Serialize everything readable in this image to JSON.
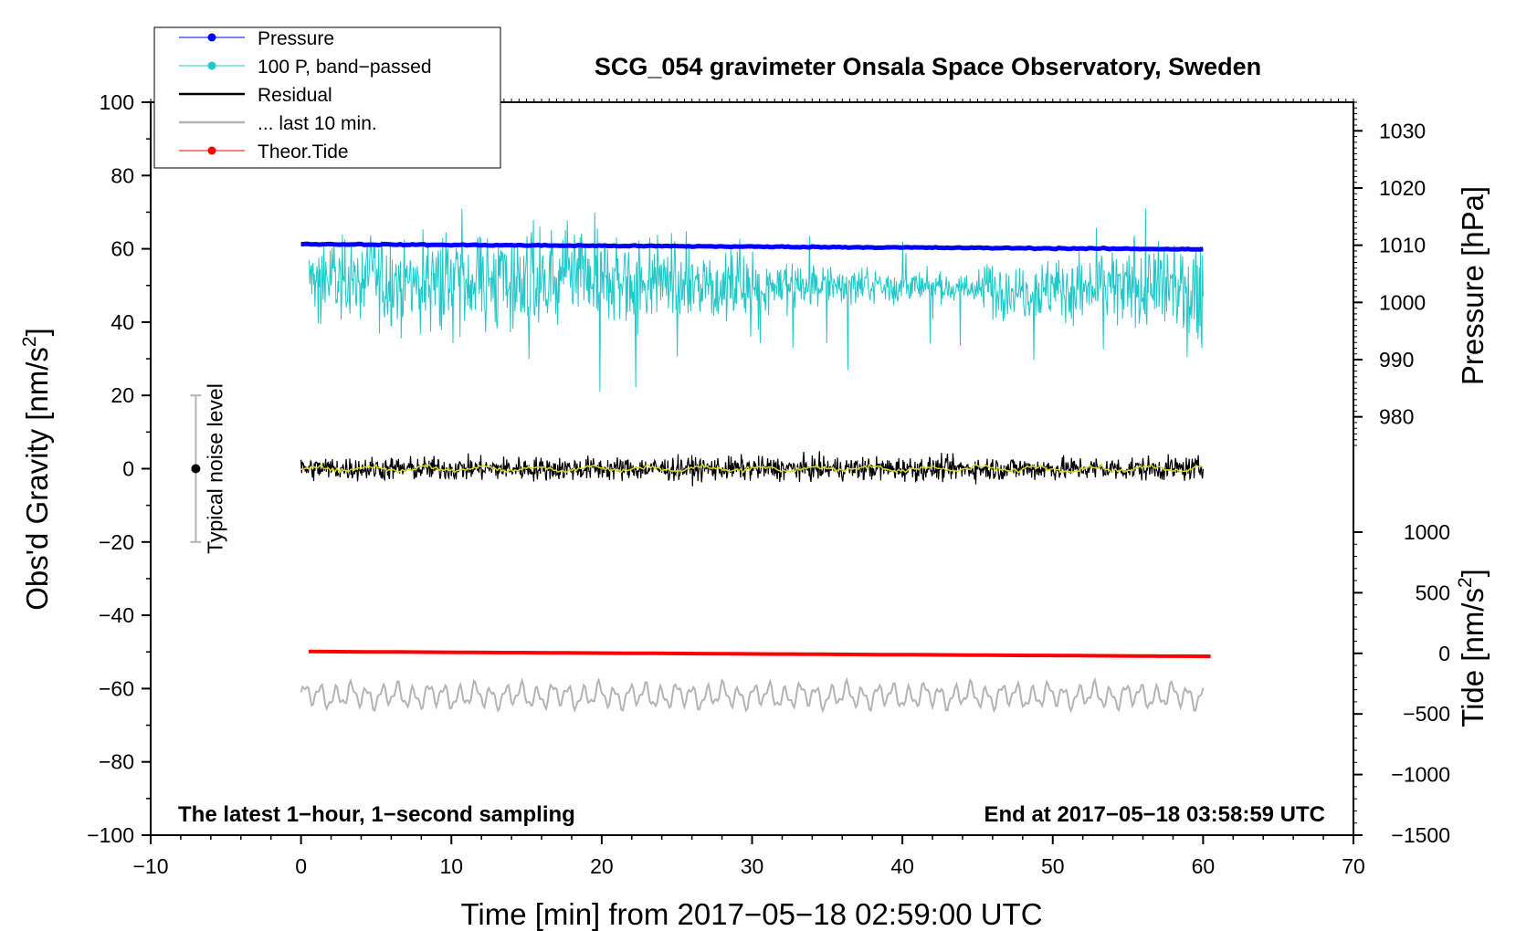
{
  "chart_data": {
    "type": "line",
    "title": "SCG_054 gravimeter Onsala Space Observatory, Sweden",
    "xlabel": "Time [min] from 2017−05−18 02:59:00 UTC",
    "ylabel_prefix": "Obs'd Gravity [nm/s",
    "ylabel_sup": "2",
    "ylabel_suffix": "]",
    "y2label": "Pressure [hPa]",
    "y3label_prefix": "Tide [nm/s",
    "y3label_sup": "2",
    "y3label_suffix": "]",
    "xlim": [
      -10,
      70
    ],
    "ylim": [
      -100,
      100
    ],
    "pressure_axis": {
      "range": [
        975,
        1035
      ],
      "ticks": [
        980,
        990,
        1000,
        1010,
        1020,
        1030
      ]
    },
    "tide_axis": {
      "range": [
        -1500,
        1000
      ],
      "ticks": [
        1000,
        500,
        0,
        -500,
        -1000,
        -1500
      ]
    },
    "x_ticks": [
      -10,
      0,
      10,
      20,
      30,
      40,
      50,
      60,
      70
    ],
    "x_tick_labels": [
      "−10",
      "0",
      "10",
      "20",
      "30",
      "40",
      "50",
      "60",
      "70"
    ],
    "y_ticks": [
      100,
      80,
      60,
      40,
      20,
      0,
      -20,
      -40,
      -60,
      -80,
      -100
    ],
    "y_tick_labels": [
      "100",
      "80",
      "60",
      "40",
      "20",
      "0",
      "−20",
      "−40",
      "−60",
      "−80",
      "−100"
    ],
    "y3_tick_labels": [
      "1000",
      "500",
      "0",
      "−500",
      "−1000",
      "−1500"
    ],
    "legend": [
      {
        "name": "Pressure",
        "color": "#0000ff",
        "marker": true
      },
      {
        "name": "100 P, band−passed",
        "color": "#20c8c8",
        "marker": true
      },
      {
        "name": "Residual",
        "color": "#000000",
        "marker": false
      },
      {
        "name": "... last 10 min.",
        "color": "#b4b4b4",
        "marker": false
      },
      {
        "name": "Theor.Tide",
        "color": "#ff0000",
        "marker": true
      }
    ],
    "series": [
      {
        "name": "Pressure",
        "axis": "pressure",
        "color": "#0000ff",
        "x_range": [
          0,
          60
        ],
        "start": 1010.2,
        "end": 1009.3
      },
      {
        "name": "100 P, band−passed",
        "axis": "gravity",
        "color": "#20c8c8",
        "x_range": [
          0.5,
          60
        ],
        "mean": 52,
        "min": 21,
        "max": 71
      },
      {
        "name": "Residual",
        "axis": "gravity",
        "color": "#000000",
        "x_range": [
          0,
          60
        ],
        "mean": 0,
        "min": -7,
        "max": 7
      },
      {
        "name": "Residual smoothed",
        "axis": "gravity",
        "color": "#d8d820",
        "x_range": [
          0,
          60
        ],
        "mean": 0
      },
      {
        "name": "... last 10 min.",
        "axis": "gravity",
        "color": "#b4b4b4",
        "x_range": [
          0,
          60
        ],
        "mean": -62,
        "min": -66,
        "max": -56
      },
      {
        "name": "Theor.Tide",
        "axis": "tide",
        "color": "#ff0000",
        "x_range": [
          0.5,
          60.5
        ],
        "start": 15,
        "end": -25
      }
    ],
    "noise_bar": {
      "x": -7,
      "center": 0,
      "low": -20,
      "high": 20,
      "label": "Typical noise level"
    },
    "note_left": "The latest 1−hour, 1−second sampling",
    "note_right": "End at 2017−05−18 03:58:59 UTC"
  }
}
